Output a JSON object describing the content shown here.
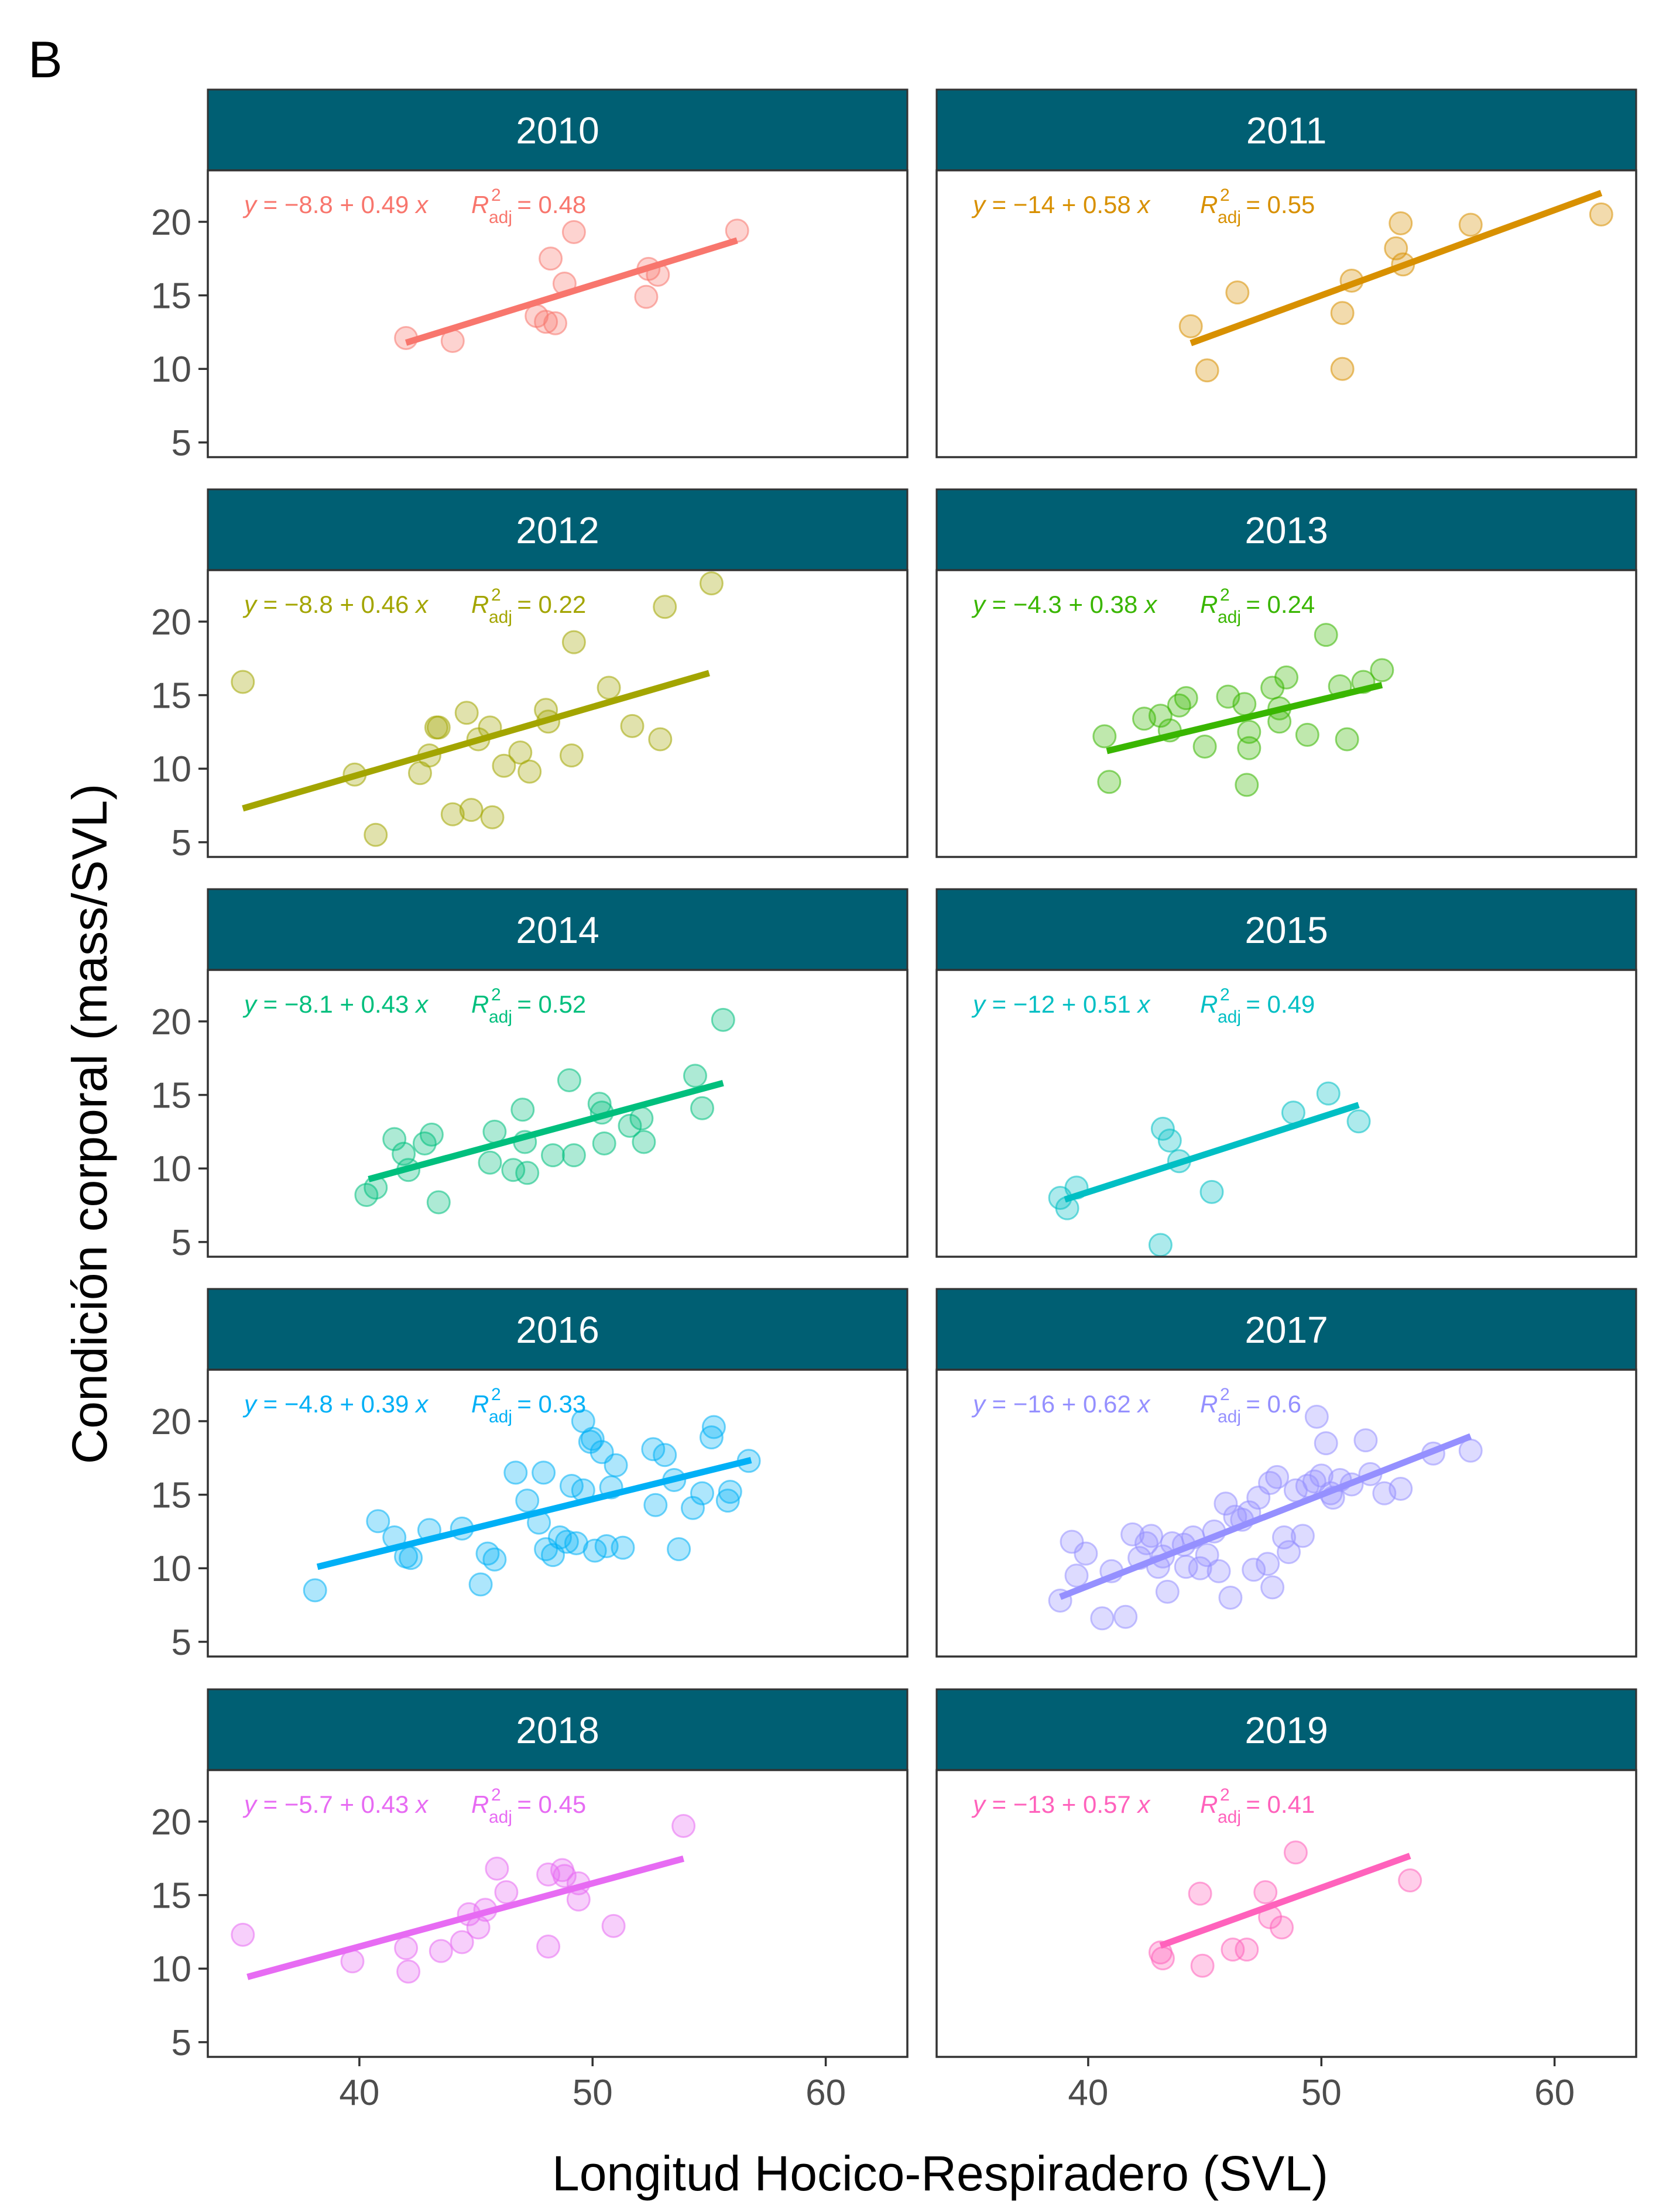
{
  "figure": {
    "tag": "B",
    "strip_color": "#005f73"
  },
  "chart_data": {
    "type": "scatter",
    "facet": "year",
    "xlabel": "Longitud Hocico-Respiradero (SVL)",
    "ylabel": "Condición corporal (mass/SVL)",
    "xlim": [
      33.5,
      63.5
    ],
    "ylim": [
      4,
      23.5
    ],
    "xticks": [
      40,
      50,
      60
    ],
    "yticks": [
      5,
      10,
      15,
      20
    ],
    "panels": [
      {
        "label": "2010",
        "color": "#f8766d",
        "eq": "y = −8.8 + 0.49 x",
        "r2": "= 0.48",
        "line_x": [
          42,
          56.2
        ],
        "points": [
          [
            42,
            12.1
          ],
          [
            44,
            11.9
          ],
          [
            47.6,
            13.6
          ],
          [
            48,
            13.2
          ],
          [
            48.4,
            13.1
          ],
          [
            48.2,
            17.5
          ],
          [
            48.8,
            15.8
          ],
          [
            49.2,
            19.3
          ],
          [
            52.3,
            14.9
          ],
          [
            52.4,
            16.8
          ],
          [
            52.8,
            16.4
          ],
          [
            56.2,
            19.4
          ]
        ]
      },
      {
        "label": "2011",
        "color": "#d89000",
        "eq": "y = −14 + 0.58 x",
        "r2": "= 0.55",
        "line_x": [
          44.4,
          62
        ],
        "points": [
          [
            44.4,
            12.9
          ],
          [
            45.1,
            9.9
          ],
          [
            46.4,
            15.2
          ],
          [
            50.9,
            13.8
          ],
          [
            50.9,
            10
          ],
          [
            51.3,
            16
          ],
          [
            53.2,
            18.2
          ],
          [
            53.4,
            19.9
          ],
          [
            53.5,
            17.1
          ],
          [
            56.4,
            19.8
          ],
          [
            62,
            20.5
          ]
        ]
      },
      {
        "label": "2012",
        "color": "#a3a500",
        "eq": "y = −8.8 + 0.46 x",
        "r2": "= 0.22",
        "line_x": [
          35,
          55
        ],
        "points": [
          [
            35,
            15.9
          ],
          [
            39.8,
            9.6
          ],
          [
            40.7,
            5.5
          ],
          [
            42.6,
            9.7
          ],
          [
            43,
            10.9
          ],
          [
            43.3,
            12.8
          ],
          [
            43.4,
            12.8
          ],
          [
            44,
            6.9
          ],
          [
            44.6,
            13.8
          ],
          [
            44.8,
            7.2
          ],
          [
            45.1,
            12
          ],
          [
            45.6,
            12.8
          ],
          [
            45.7,
            6.7
          ],
          [
            46.2,
            10.2
          ],
          [
            46.9,
            11.1
          ],
          [
            47.3,
            9.8
          ],
          [
            48,
            14
          ],
          [
            48.1,
            13.2
          ],
          [
            49.1,
            10.9
          ],
          [
            49.2,
            18.6
          ],
          [
            50.7,
            15.5
          ],
          [
            51.7,
            12.9
          ],
          [
            52.9,
            12
          ],
          [
            53.1,
            21
          ],
          [
            55.1,
            22.6
          ]
        ]
      },
      {
        "label": "2013",
        "color": "#39b600",
        "eq": "y = −4.3 + 0.38 x",
        "r2": "= 0.24",
        "line_x": [
          40.8,
          52.6
        ],
        "points": [
          [
            40.7,
            12.2
          ],
          [
            40.9,
            9.1
          ],
          [
            42.4,
            13.4
          ],
          [
            43.1,
            13.6
          ],
          [
            43.5,
            12.6
          ],
          [
            43.9,
            14.3
          ],
          [
            44.2,
            14.8
          ],
          [
            45,
            11.5
          ],
          [
            46,
            14.9
          ],
          [
            46.7,
            14.4
          ],
          [
            46.9,
            12.5
          ],
          [
            46.9,
            11.4
          ],
          [
            46.8,
            8.9
          ],
          [
            47.9,
            15.5
          ],
          [
            48.2,
            13.2
          ],
          [
            48.2,
            14.1
          ],
          [
            48.5,
            16.2
          ],
          [
            49.4,
            12.3
          ],
          [
            50.2,
            19.1
          ],
          [
            50.8,
            15.6
          ],
          [
            51.1,
            12
          ],
          [
            51.8,
            15.9
          ],
          [
            52.6,
            16.7
          ]
        ]
      },
      {
        "label": "2014",
        "color": "#00bf7d",
        "eq": "y = −8.1 + 0.43 x",
        "r2": "= 0.52",
        "line_x": [
          40.4,
          55.6
        ],
        "points": [
          [
            40.3,
            8.2
          ],
          [
            40.7,
            8.7
          ],
          [
            41.5,
            12
          ],
          [
            41.9,
            11
          ],
          [
            42.1,
            9.9
          ],
          [
            42.8,
            11.7
          ],
          [
            43.1,
            12.3
          ],
          [
            43.4,
            7.7
          ],
          [
            45.6,
            10.4
          ],
          [
            45.8,
            12.5
          ],
          [
            46.6,
            9.9
          ],
          [
            47,
            14
          ],
          [
            47.1,
            11.8
          ],
          [
            47.2,
            9.7
          ],
          [
            48.3,
            10.9
          ],
          [
            49,
            16
          ],
          [
            49.2,
            10.9
          ],
          [
            50.3,
            14.4
          ],
          [
            50.5,
            11.7
          ],
          [
            50.4,
            13.8
          ],
          [
            51.6,
            12.9
          ],
          [
            52.1,
            13.4
          ],
          [
            52.2,
            11.8
          ],
          [
            54.4,
            16.3
          ],
          [
            54.7,
            14.1
          ],
          [
            55.6,
            20.1
          ]
        ]
      },
      {
        "label": "2015",
        "color": "#00bfc4",
        "eq": "y = −12 + 0.51 x",
        "r2": "= 0.49",
        "line_x": [
          39,
          51.6
        ],
        "points": [
          [
            38.8,
            8
          ],
          [
            39.1,
            7.3
          ],
          [
            39.5,
            8.7
          ],
          [
            43.2,
            12.7
          ],
          [
            43.5,
            11.9
          ],
          [
            43.9,
            10.5
          ],
          [
            43.1,
            4.8
          ],
          [
            45.3,
            8.4
          ],
          [
            48.8,
            13.8
          ],
          [
            50.3,
            15.1
          ],
          [
            51.6,
            13.2
          ]
        ]
      },
      {
        "label": "2016",
        "color": "#00b0f6",
        "eq": "y = −4.8 + 0.39 x",
        "r2": "= 0.33",
        "line_x": [
          38.2,
          56.8
        ],
        "points": [
          [
            38.1,
            8.5
          ],
          [
            40.8,
            13.2
          ],
          [
            41.5,
            12.1
          ],
          [
            42,
            10.8
          ],
          [
            42.2,
            10.7
          ],
          [
            43,
            12.6
          ],
          [
            44.4,
            12.7
          ],
          [
            45.2,
            8.9
          ],
          [
            45.5,
            11
          ],
          [
            45.8,
            10.6
          ],
          [
            46.7,
            16.5
          ],
          [
            47.2,
            14.6
          ],
          [
            47.7,
            13.1
          ],
          [
            47.9,
            16.5
          ],
          [
            48,
            11.3
          ],
          [
            48.3,
            10.9
          ],
          [
            48.6,
            12.1
          ],
          [
            48.9,
            11.8
          ],
          [
            49.1,
            15.6
          ],
          [
            49.3,
            11.7
          ],
          [
            49.6,
            15.3
          ],
          [
            49.6,
            20
          ],
          [
            49.9,
            18.6
          ],
          [
            50,
            18.8
          ],
          [
            50.1,
            11.2
          ],
          [
            50.4,
            17.9
          ],
          [
            50.6,
            11.5
          ],
          [
            50.8,
            15.5
          ],
          [
            51,
            17
          ],
          [
            51.3,
            11.4
          ],
          [
            52.6,
            18.1
          ],
          [
            52.7,
            14.3
          ],
          [
            53.1,
            17.7
          ],
          [
            53.5,
            16
          ],
          [
            53.7,
            11.3
          ],
          [
            54.3,
            14.1
          ],
          [
            54.7,
            15.1
          ],
          [
            55.1,
            18.9
          ],
          [
            55.2,
            19.6
          ],
          [
            55.8,
            14.6
          ],
          [
            55.9,
            15.2
          ],
          [
            56.7,
            17.3
          ]
        ]
      },
      {
        "label": "2017",
        "color": "#9590ff",
        "eq": "y = −16 + 0.62 x",
        "r2": "= 0.6",
        "line_x": [
          38.8,
          56.4
        ],
        "points": [
          [
            38.8,
            7.8
          ],
          [
            39.3,
            11.8
          ],
          [
            39.5,
            9.5
          ],
          [
            39.9,
            11
          ],
          [
            40.6,
            6.6
          ],
          [
            41,
            9.8
          ],
          [
            41.6,
            6.7
          ],
          [
            41.9,
            12.3
          ],
          [
            42.2,
            10.7
          ],
          [
            42.5,
            11.7
          ],
          [
            42.7,
            12.2
          ],
          [
            43,
            10.1
          ],
          [
            43.2,
            10.8
          ],
          [
            43.4,
            8.4
          ],
          [
            43.6,
            11.7
          ],
          [
            44.1,
            11.6
          ],
          [
            44.2,
            10.1
          ],
          [
            44.5,
            12.1
          ],
          [
            44.8,
            10
          ],
          [
            45.1,
            10.9
          ],
          [
            45.4,
            12.5
          ],
          [
            45.6,
            9.8
          ],
          [
            45.9,
            14.4
          ],
          [
            46.1,
            8
          ],
          [
            46.3,
            13.5
          ],
          [
            46.6,
            13.3
          ],
          [
            46.9,
            13.8
          ],
          [
            47.1,
            9.9
          ],
          [
            47.3,
            14.8
          ],
          [
            47.7,
            10.3
          ],
          [
            47.8,
            15.8
          ],
          [
            47.9,
            8.7
          ],
          [
            48.1,
            16.2
          ],
          [
            48.4,
            12.1
          ],
          [
            48.6,
            11.1
          ],
          [
            48.9,
            15.3
          ],
          [
            49.2,
            12.2
          ],
          [
            49.4,
            15.6
          ],
          [
            49.7,
            15.9
          ],
          [
            49.8,
            20.3
          ],
          [
            50,
            16.3
          ],
          [
            50.2,
            18.5
          ],
          [
            50.4,
            15.1
          ],
          [
            50.5,
            14.8
          ],
          [
            50.8,
            16
          ],
          [
            51.3,
            15.7
          ],
          [
            51.9,
            18.7
          ],
          [
            52.1,
            16.4
          ],
          [
            52.7,
            15.1
          ],
          [
            53.4,
            15.4
          ],
          [
            54.8,
            17.8
          ],
          [
            56.4,
            18
          ]
        ]
      },
      {
        "label": "2018",
        "color": "#e76bf3",
        "eq": "y = −5.7 + 0.43 x",
        "r2": "= 0.45",
        "line_x": [
          35.2,
          53.9
        ],
        "points": [
          [
            35,
            12.3
          ],
          [
            39.7,
            10.5
          ],
          [
            42,
            11.4
          ],
          [
            42.1,
            9.8
          ],
          [
            43.5,
            11.2
          ],
          [
            44.4,
            11.8
          ],
          [
            44.7,
            13.7
          ],
          [
            45.1,
            12.8
          ],
          [
            45.4,
            14
          ],
          [
            45.9,
            16.8
          ],
          [
            46.3,
            15.2
          ],
          [
            48.1,
            16.4
          ],
          [
            48.1,
            11.5
          ],
          [
            48.7,
            16.7
          ],
          [
            48.8,
            16.3
          ],
          [
            49.4,
            15.8
          ],
          [
            49.4,
            14.7
          ],
          [
            50.9,
            12.9
          ],
          [
            53.9,
            19.7
          ]
        ]
      },
      {
        "label": "2019",
        "color": "#ff62bc",
        "eq": "y = −13 + 0.57 x",
        "r2": "= 0.41",
        "line_x": [
          43.1,
          53.8
        ],
        "points": [
          [
            43.1,
            11.1
          ],
          [
            43.2,
            10.7
          ],
          [
            44.8,
            15.1
          ],
          [
            44.9,
            10.2
          ],
          [
            46.2,
            11.3
          ],
          [
            46.8,
            11.3
          ],
          [
            47.6,
            15.2
          ],
          [
            47.8,
            13.5
          ],
          [
            48.3,
            12.8
          ],
          [
            48.9,
            17.9
          ],
          [
            53.8,
            16
          ]
        ]
      }
    ]
  }
}
